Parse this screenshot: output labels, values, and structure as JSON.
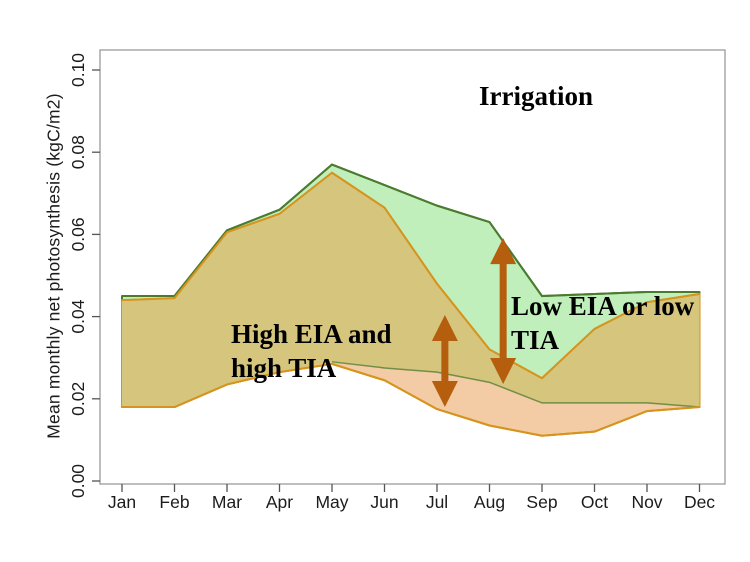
{
  "figure": {
    "annotations": {
      "irrigation": "Irrigation",
      "high_line1": "High EIA and",
      "high_line2": "high TIA",
      "low_line1": "Low EIA or low",
      "low_line2": "TIA"
    }
  },
  "chart_data": {
    "type": "area",
    "title": "",
    "xlabel": "",
    "ylabel": "Mean monthly net photosynthesis (kgC/m2)",
    "categories": [
      "Jan",
      "Feb",
      "Mar",
      "Apr",
      "May",
      "Jun",
      "Jul",
      "Aug",
      "Sep",
      "Oct",
      "Nov",
      "Dec"
    ],
    "ylim": [
      0.0,
      0.1
    ],
    "ytick_labels": [
      "0.00",
      "0.02",
      "0.04",
      "0.06",
      "0.08",
      "0.10"
    ],
    "ytick_values": [
      0.0,
      0.02,
      0.04,
      0.06,
      0.08,
      0.1
    ],
    "grid": "off",
    "legend": "none",
    "series": [
      {
        "name": "green-band-upper",
        "values": [
          0.045,
          0.045,
          0.061,
          0.066,
          0.077,
          0.072,
          0.067,
          0.063,
          0.045,
          0.0455,
          0.046,
          0.046
        ]
      },
      {
        "name": "green-band-lower",
        "values": [
          0.018,
          0.018,
          0.0235,
          0.0265,
          0.029,
          0.0275,
          0.0265,
          0.024,
          0.019,
          0.019,
          0.019,
          0.018
        ]
      },
      {
        "name": "orange-band-upper",
        "values": [
          0.044,
          0.0445,
          0.0605,
          0.065,
          0.075,
          0.0665,
          0.048,
          0.032,
          0.025,
          0.037,
          0.0435,
          0.0455
        ]
      },
      {
        "name": "orange-band-lower",
        "values": [
          0.018,
          0.018,
          0.0235,
          0.0265,
          0.0285,
          0.0245,
          0.0175,
          0.0135,
          0.011,
          0.012,
          0.017,
          0.018
        ]
      }
    ],
    "arrows": [
      {
        "name": "high-eia-arrow",
        "month_position": 6.15,
        "v_top": 0.0404,
        "v_bottom": 0.018
      },
      {
        "name": "low-eia-arrow",
        "month_position": 7.26,
        "v_top": 0.0591,
        "v_bottom": 0.0236
      }
    ],
    "colors": {
      "green_fill": "#c0efbc",
      "orange_fill": "#f3cba4",
      "overlap_fill": "#d5c57d",
      "green_line": "#4b7b2f",
      "orange_line": "#d6941e",
      "arrow": "#b55e0d",
      "box": "#9a9a9a",
      "tick": "#555555",
      "text": "#1c1c1c"
    }
  }
}
